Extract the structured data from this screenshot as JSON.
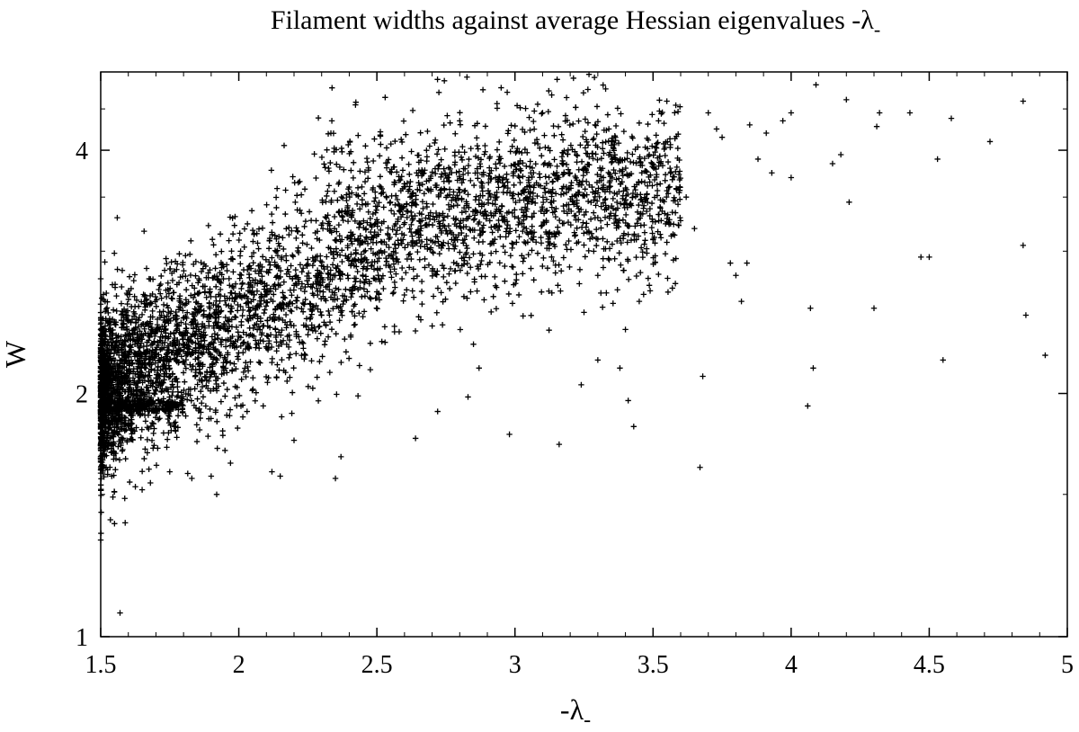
{
  "chart_data": {
    "type": "scatter",
    "title": "Filament widths against average Hessian eigenvalues -λ",
    "title_subscript": "-",
    "xlabel": "-λ",
    "xlabel_subscript": "-",
    "ylabel": "W",
    "xlim": [
      1.5,
      5
    ],
    "ylim": [
      1,
      5
    ],
    "yscale": "log",
    "grid": false,
    "legend": "none",
    "marker": "plus",
    "marker_color": "#000000",
    "x_ticks": [
      1.5,
      2,
      2.5,
      3,
      3.5,
      4,
      4.5,
      5
    ],
    "x_tick_labels": [
      "1.5",
      "2",
      "2.5",
      "3",
      "3.5",
      "4",
      "4.5",
      "5"
    ],
    "y_ticks": [
      1,
      2,
      4
    ],
    "y_tick_labels": [
      "1",
      "2",
      "4"
    ],
    "series": [
      {
        "points": [
          [
            1.56,
            3.3
          ],
          [
            1.55,
            1.38
          ],
          [
            1.57,
            1.07
          ],
          [
            1.52,
            1.62
          ],
          [
            1.54,
            1.58
          ],
          [
            1.65,
            1.52
          ],
          [
            1.68,
            1.55
          ],
          [
            1.75,
            1.6
          ],
          [
            1.83,
            1.57
          ],
          [
            1.92,
            1.5
          ],
          [
            1.9,
            1.58
          ],
          [
            1.95,
            1.7
          ],
          [
            1.97,
            1.64
          ],
          [
            2.03,
            1.9
          ],
          [
            2.12,
            1.6
          ],
          [
            2.15,
            1.58
          ],
          [
            2.2,
            1.75
          ],
          [
            2.35,
            1.57
          ],
          [
            2.37,
            1.67
          ],
          [
            2.53,
            4.65
          ],
          [
            2.63,
            4.48
          ],
          [
            2.64,
            1.76
          ],
          [
            2.72,
            1.9
          ],
          [
            2.8,
            4.35
          ],
          [
            2.83,
            1.98
          ],
          [
            2.87,
            2.15
          ],
          [
            2.95,
            4.78
          ],
          [
            2.98,
            1.78
          ],
          [
            3.1,
            4.45
          ],
          [
            3.16,
            1.73
          ],
          [
            3.22,
            4.52
          ],
          [
            3.24,
            2.05
          ],
          [
            3.25,
            2.52
          ],
          [
            3.3,
            2.2
          ],
          [
            3.34,
            4.25
          ],
          [
            3.38,
            2.15
          ],
          [
            3.41,
            1.96
          ],
          [
            3.43,
            1.82
          ],
          [
            3.45,
            2.6
          ],
          [
            3.52,
            4.35
          ],
          [
            3.55,
            4.6
          ],
          [
            3.57,
            2.7
          ],
          [
            3.62,
            3.5
          ],
          [
            3.65,
            3.2
          ],
          [
            3.67,
            1.62
          ],
          [
            3.68,
            2.1
          ],
          [
            3.7,
            4.45
          ],
          [
            3.73,
            4.25
          ],
          [
            3.75,
            4.15
          ],
          [
            3.78,
            2.9
          ],
          [
            3.8,
            2.8
          ],
          [
            3.82,
            2.6
          ],
          [
            3.84,
            2.9
          ],
          [
            3.85,
            4.3
          ],
          [
            3.88,
            3.9
          ],
          [
            3.91,
            4.2
          ],
          [
            3.93,
            3.75
          ],
          [
            3.97,
            4.35
          ],
          [
            4.0,
            4.45
          ],
          [
            4.06,
            1.93
          ],
          [
            4.07,
            2.55
          ],
          [
            4.08,
            2.15
          ],
          [
            4.09,
            4.82
          ],
          [
            4.15,
            3.85
          ],
          [
            4.18,
            3.95
          ],
          [
            4.2,
            4.62
          ],
          [
            4.21,
            3.45
          ],
          [
            4.3,
            2.55
          ],
          [
            4.31,
            4.28
          ],
          [
            4.32,
            4.45
          ],
          [
            4.43,
            4.45
          ],
          [
            4.5,
            2.95
          ],
          [
            4.53,
            3.9
          ],
          [
            4.55,
            2.2
          ],
          [
            4.58,
            4.38
          ],
          [
            4.72,
            4.1
          ],
          [
            4.84,
            4.6
          ],
          [
            4.84,
            3.05
          ],
          [
            4.85,
            2.5
          ],
          [
            4.92,
            2.23
          ],
          [
            4.47,
            2.95
          ],
          [
            4.0,
            3.7
          ],
          [
            3.5,
            3.1
          ],
          [
            3.4,
            2.4
          ],
          [
            3.3,
            2.8
          ]
        ]
      }
    ],
    "generated_cloud_description_free": false
  }
}
